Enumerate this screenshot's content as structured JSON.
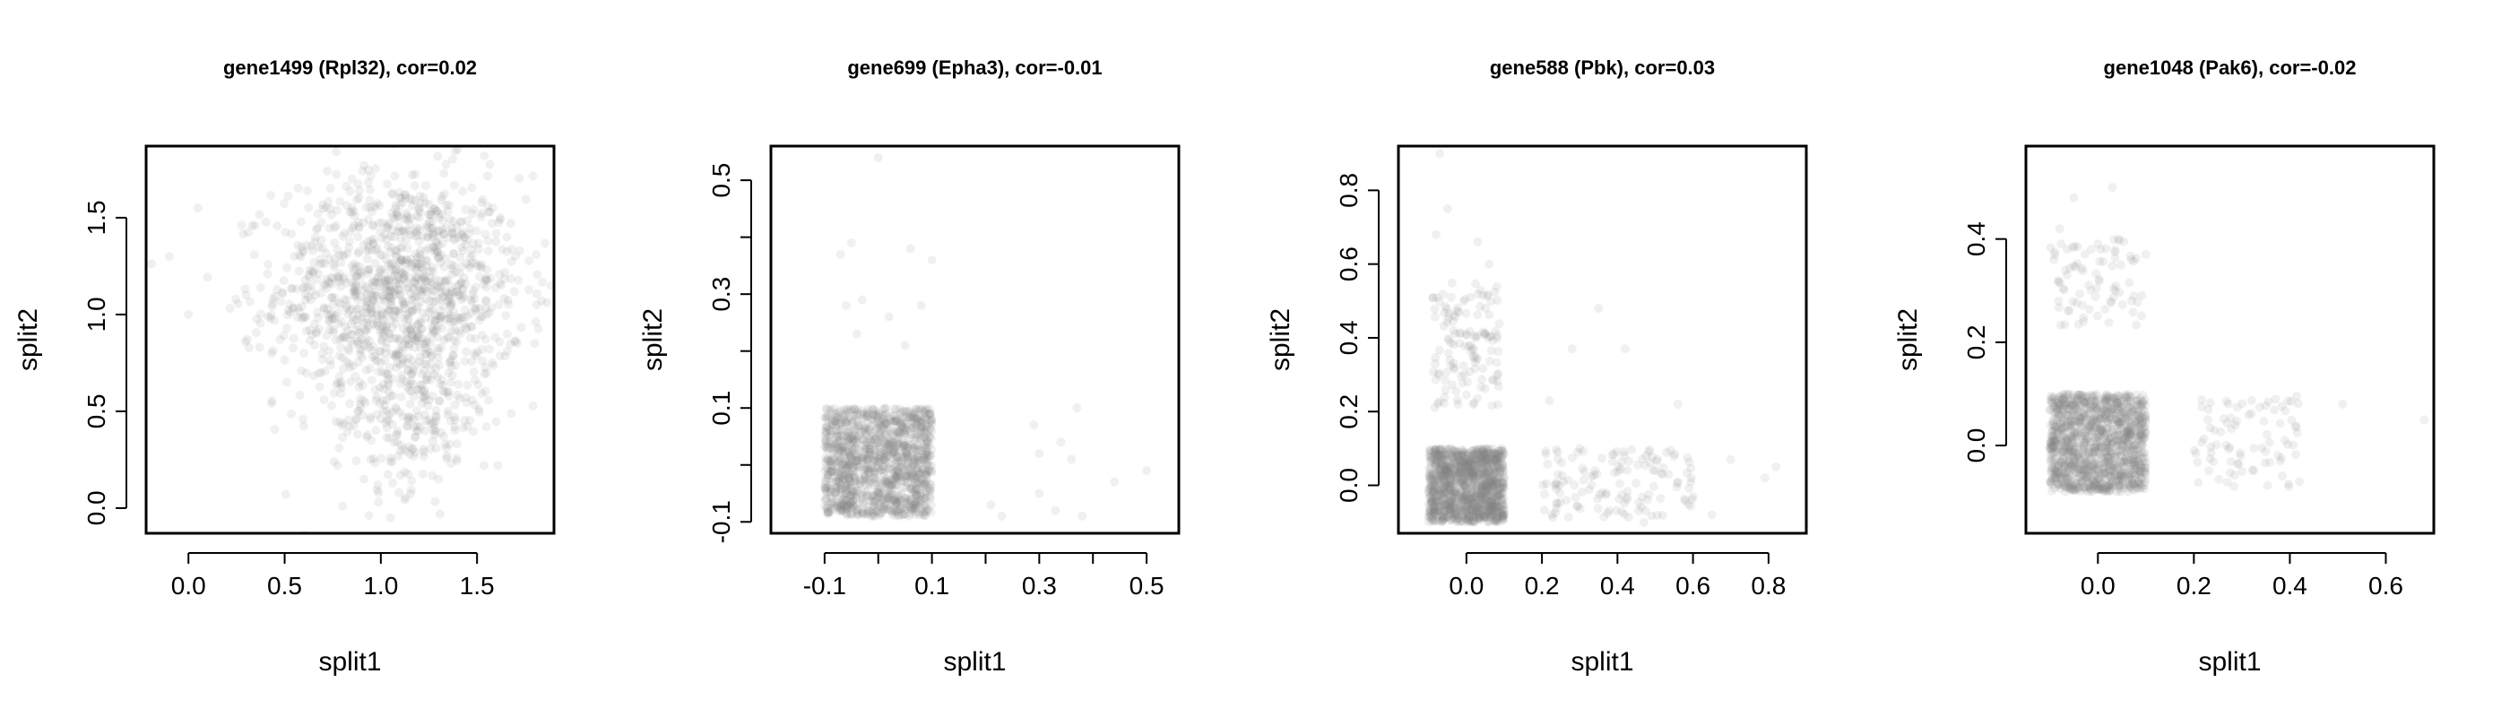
{
  "figure": {
    "point_color": "#808080",
    "point_opacity": 0.12
  },
  "chart_data": [
    {
      "type": "scatter",
      "title": "gene1499 (Rpl32), cor=0.02",
      "xlabel": "split1",
      "ylabel": "split2",
      "xlim": [
        -0.22,
        1.9
      ],
      "ylim": [
        -0.13,
        1.87
      ],
      "xticks": [
        0.0,
        0.5,
        1.0,
        1.5
      ],
      "xtick_labels": [
        "0.0",
        "0.5",
        "1.0",
        "1.5"
      ],
      "yticks": [
        0.0,
        0.5,
        1.0,
        1.5
      ],
      "ytick_labels": [
        "0.0",
        "0.5",
        "1.0",
        "1.5"
      ],
      "grid": false,
      "points": [
        [
          1.1,
          1.1
        ],
        [
          1.3,
          1.3
        ],
        [
          0.9,
          1.2
        ],
        [
          1.2,
          0.9
        ],
        [
          1.05,
          1.25
        ],
        [
          1.4,
          1.15
        ],
        [
          0.75,
          1.05
        ],
        [
          1.25,
          1.45
        ],
        [
          1.0,
          0.75
        ],
        [
          1.55,
          1.0
        ],
        [
          0.55,
          1.3
        ],
        [
          1.15,
          1.6
        ],
        [
          0.6,
          0.8
        ],
        [
          1.7,
          1.3
        ],
        [
          0.3,
          1.1
        ],
        [
          1.35,
          0.5
        ],
        [
          0.95,
          0.35
        ],
        [
          1.3,
          0.15
        ],
        [
          1.05,
          -0.05
        ],
        [
          0.0,
          1.0
        ],
        [
          -0.1,
          1.3
        ],
        [
          0.05,
          1.55
        ],
        [
          1.8,
          0.85
        ],
        [
          0.85,
          1.7
        ]
      ],
      "clusters": [
        {
          "type": "gauss",
          "n": 1200,
          "cx": 1.1,
          "cy": 1.12,
          "sx": 0.32,
          "sy": 0.3
        },
        {
          "type": "gauss",
          "n": 200,
          "cx": 1.15,
          "cy": 0.45,
          "sx": 0.2,
          "sy": 0.18
        }
      ]
    },
    {
      "type": "scatter",
      "title": "gene699 (Epha3), cor=-0.01",
      "xlabel": "split1",
      "ylabel": "split2",
      "xlim": [
        -0.2,
        0.56
      ],
      "ylim": [
        -0.12,
        0.56
      ],
      "xticks": [
        -0.1,
        0.0,
        0.1,
        0.2,
        0.3,
        0.4,
        0.5
      ],
      "xtick_labels": [
        "-0.1",
        "",
        "0.1",
        "",
        "0.3",
        "",
        "0.5"
      ],
      "yticks": [
        -0.1,
        0.0,
        0.1,
        0.2,
        0.3,
        0.4,
        0.5
      ],
      "ytick_labels": [
        "-0.1",
        "",
        "0.1",
        "",
        "0.3",
        "",
        "0.5"
      ],
      "grid": false,
      "points": [
        [
          0.0,
          0.54
        ],
        [
          -0.07,
          0.37
        ],
        [
          -0.05,
          0.39
        ],
        [
          0.06,
          0.38
        ],
        [
          0.1,
          0.36
        ],
        [
          -0.06,
          0.28
        ],
        [
          -0.03,
          0.29
        ],
        [
          0.02,
          0.26
        ],
        [
          0.05,
          0.21
        ],
        [
          -0.04,
          0.23
        ],
        [
          0.08,
          0.28
        ],
        [
          0.21,
          -0.07
        ],
        [
          0.23,
          -0.09
        ],
        [
          0.3,
          -0.05
        ],
        [
          0.33,
          -0.08
        ],
        [
          0.36,
          0.01
        ],
        [
          0.29,
          0.07
        ],
        [
          0.38,
          -0.09
        ],
        [
          0.44,
          -0.03
        ],
        [
          0.5,
          -0.01
        ],
        [
          0.37,
          0.1
        ],
        [
          0.3,
          0.02
        ],
        [
          0.34,
          0.04
        ]
      ],
      "clusters": [
        {
          "type": "uniform",
          "n": 1300,
          "x": [
            -0.1,
            0.1
          ],
          "y": [
            -0.09,
            0.1
          ]
        }
      ]
    },
    {
      "type": "scatter",
      "title": "gene588 (Pbk), cor=0.03",
      "xlabel": "split1",
      "ylabel": "split2",
      "xlim": [
        -0.18,
        0.9
      ],
      "ylim": [
        -0.13,
        0.92
      ],
      "xticks": [
        0.0,
        0.2,
        0.4,
        0.6,
        0.8
      ],
      "xtick_labels": [
        "0.0",
        "0.2",
        "0.4",
        "0.6",
        "0.8"
      ],
      "yticks": [
        0.0,
        0.2,
        0.4,
        0.6,
        0.8
      ],
      "ytick_labels": [
        "0.0",
        "0.2",
        "0.4",
        "0.6",
        "0.8"
      ],
      "grid": false,
      "points": [
        [
          -0.07,
          0.9
        ],
        [
          -0.05,
          0.75
        ],
        [
          -0.08,
          0.68
        ],
        [
          0.03,
          0.66
        ],
        [
          0.06,
          0.6
        ],
        [
          0.35,
          0.48
        ],
        [
          0.28,
          0.37
        ],
        [
          0.42,
          0.37
        ],
        [
          0.22,
          0.23
        ],
        [
          0.56,
          0.22
        ],
        [
          0.7,
          0.07
        ],
        [
          0.82,
          0.05
        ],
        [
          0.79,
          0.02
        ],
        [
          0.65,
          -0.08
        ],
        [
          0.47,
          -0.1
        ],
        [
          0.3,
          0.1
        ],
        [
          0.36,
          -0.02
        ],
        [
          0.24,
          -0.05
        ]
      ],
      "clusters": [
        {
          "type": "uniform",
          "n": 1300,
          "x": [
            -0.1,
            0.1
          ],
          "y": [
            -0.1,
            0.1
          ]
        },
        {
          "type": "uniform",
          "n": 130,
          "x": [
            -0.09,
            0.09
          ],
          "y": [
            0.2,
            0.55
          ]
        },
        {
          "type": "uniform",
          "n": 130,
          "x": [
            0.2,
            0.6
          ],
          "y": [
            -0.09,
            0.1
          ]
        }
      ]
    },
    {
      "type": "scatter",
      "title": "gene1048 (Pak6), cor=-0.02",
      "xlabel": "split1",
      "ylabel": "split2",
      "xlim": [
        -0.15,
        0.7
      ],
      "ylim": [
        -0.17,
        0.58
      ],
      "xticks": [
        0.0,
        0.2,
        0.4,
        0.6
      ],
      "xtick_labels": [
        "0.0",
        "0.2",
        "0.4",
        "0.6"
      ],
      "yticks": [
        0.0,
        0.2,
        0.4
      ],
      "ytick_labels": [
        "0.0",
        "0.2",
        "0.4"
      ],
      "grid": false,
      "points": [
        [
          -0.05,
          0.48
        ],
        [
          0.03,
          0.5
        ],
        [
          0.1,
          0.37
        ],
        [
          -0.08,
          0.42
        ],
        [
          0.07,
          0.28
        ],
        [
          -0.03,
          0.24
        ],
        [
          0.51,
          0.08
        ],
        [
          0.68,
          0.05
        ],
        [
          0.42,
          -0.07
        ],
        [
          0.37,
          0.09
        ],
        [
          0.23,
          0.07
        ],
        [
          0.3,
          -0.05
        ],
        [
          0.38,
          -0.03
        ]
      ],
      "clusters": [
        {
          "type": "uniform",
          "n": 1300,
          "x": [
            -0.1,
            0.1
          ],
          "y": [
            -0.09,
            0.1
          ]
        },
        {
          "type": "uniform",
          "n": 80,
          "x": [
            -0.1,
            0.1
          ],
          "y": [
            0.22,
            0.4
          ]
        },
        {
          "type": "uniform",
          "n": 80,
          "x": [
            0.2,
            0.42
          ],
          "y": [
            -0.08,
            0.1
          ]
        }
      ]
    }
  ]
}
